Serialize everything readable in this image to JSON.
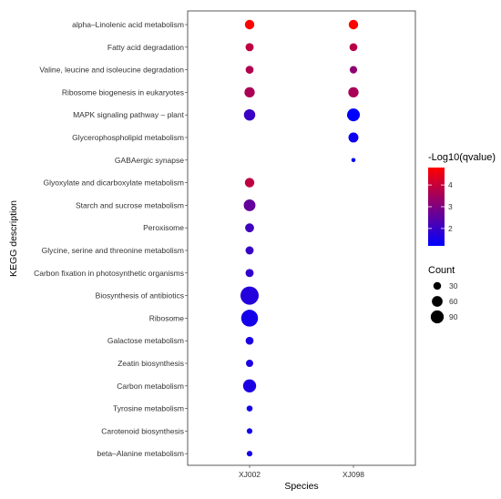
{
  "chart_data": {
    "type": "scatter",
    "xlabel": "Species",
    "ylabel": "KEGG description",
    "x_categories": [
      "XJ002",
      "XJ098"
    ],
    "y_categories": [
      "alpha–Linolenic acid metabolism",
      "Fatty acid degradation",
      "Valine, leucine and isoleucine degradation",
      "Ribosome biogenesis in eukaryotes",
      "MAPK signaling pathway – plant",
      "Glycerophospholipid metabolism",
      "GABAergic synapse",
      "Glyoxylate and dicarboxylate metabolism",
      "Starch and sucrose metabolism",
      "Peroxisome",
      "Glycine, serine and threonine metabolism",
      "Carbon fixation in photosynthetic organisms",
      "Biosynthesis of antibiotics",
      "Ribosome",
      "Galactose metabolism",
      "Zeatin biosynthesis",
      "Carbon metabolism",
      "Tyrosine metabolism",
      "Carotenoid biosynthesis",
      "beta–Alanine metabolism"
    ],
    "points": [
      {
        "x": "XJ002",
        "y": "alpha–Linolenic acid metabolism",
        "count": 25,
        "neglog10q": 4.8
      },
      {
        "x": "XJ002",
        "y": "Fatty acid degradation",
        "count": 18,
        "neglog10q": 3.9
      },
      {
        "x": "XJ002",
        "y": "Valine, leucine and isoleucine degradation",
        "count": 17,
        "neglog10q": 3.7
      },
      {
        "x": "XJ002",
        "y": "Ribosome biogenesis in eukaryotes",
        "count": 30,
        "neglog10q": 3.6
      },
      {
        "x": "XJ002",
        "y": "MAPK signaling pathway – plant",
        "count": 37,
        "neglog10q": 2.0
      },
      {
        "x": "XJ002",
        "y": "Glyoxylate and dicarboxylate metabolism",
        "count": 25,
        "neglog10q": 3.9
      },
      {
        "x": "XJ002",
        "y": "Starch and sucrose metabolism",
        "count": 40,
        "neglog10q": 2.6
      },
      {
        "x": "XJ002",
        "y": "Peroxisome",
        "count": 22,
        "neglog10q": 2.1
      },
      {
        "x": "XJ002",
        "y": "Glycine, serine and threonine metabolism",
        "count": 18,
        "neglog10q": 2.0
      },
      {
        "x": "XJ002",
        "y": "Carbon fixation in photosynthetic organisms",
        "count": 18,
        "neglog10q": 1.9
      },
      {
        "x": "XJ002",
        "y": "Biosynthesis of antibiotics",
        "count": 100,
        "neglog10q": 1.7
      },
      {
        "x": "XJ002",
        "y": "Ribosome",
        "count": 85,
        "neglog10q": 1.5
      },
      {
        "x": "XJ002",
        "y": "Galactose metabolism",
        "count": 17,
        "neglog10q": 1.6
      },
      {
        "x": "XJ002",
        "y": "Zeatin biosynthesis",
        "count": 14,
        "neglog10q": 1.6
      },
      {
        "x": "XJ002",
        "y": "Carbon metabolism",
        "count": 50,
        "neglog10q": 1.6
      },
      {
        "x": "XJ002",
        "y": "Tyrosine metabolism",
        "count": 9,
        "neglog10q": 1.5
      },
      {
        "x": "XJ002",
        "y": "Carotenoid biosynthesis",
        "count": 8,
        "neglog10q": 1.5
      },
      {
        "x": "XJ002",
        "y": "beta–Alanine metabolism",
        "count": 8,
        "neglog10q": 1.5
      },
      {
        "x": "XJ098",
        "y": "alpha–Linolenic acid metabolism",
        "count": 25,
        "neglog10q": 4.8
      },
      {
        "x": "XJ098",
        "y": "Fatty acid degradation",
        "count": 17,
        "neglog10q": 3.8
      },
      {
        "x": "XJ098",
        "y": "Valine, leucine and isoleucine degradation",
        "count": 15,
        "neglog10q": 3.2
      },
      {
        "x": "XJ098",
        "y": "Ribosome biogenesis in eukaryotes",
        "count": 30,
        "neglog10q": 3.6
      },
      {
        "x": "XJ098",
        "y": "MAPK signaling pathway – plant",
        "count": 48,
        "neglog10q": 1.2
      },
      {
        "x": "XJ098",
        "y": "Glycerophospholipid metabolism",
        "count": 28,
        "neglog10q": 1.4
      },
      {
        "x": "XJ098",
        "y": "GABAergic synapse",
        "count": 4,
        "neglog10q": 1.4
      }
    ],
    "color": {
      "title": "-Log10(qvalue)",
      "ticks": [
        2,
        3,
        4
      ],
      "range": [
        1.2,
        4.8
      ],
      "low": "#0000ff",
      "high": "#ff0000"
    },
    "size": {
      "title": "Count",
      "ticks": [
        30,
        60,
        90
      ]
    },
    "grid": false,
    "legend_position": "right"
  }
}
